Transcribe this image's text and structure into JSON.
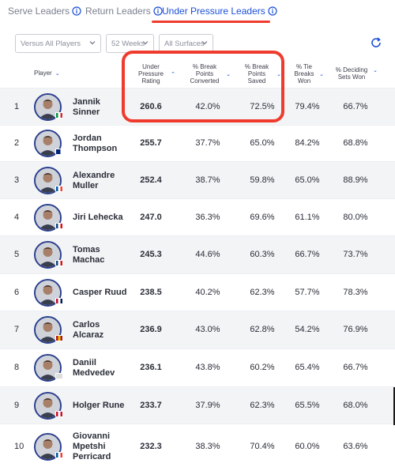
{
  "tabs": [
    {
      "label": "Serve Leaders",
      "active": false
    },
    {
      "label": "Return Leaders",
      "active": false
    },
    {
      "label": "Under Pressure Leaders",
      "active": true
    }
  ],
  "filters": {
    "opponents": "Versus All Players",
    "period": "52 Weeks",
    "surface": "All Surfaces"
  },
  "columns": {
    "player": "Player",
    "rating": [
      "Under",
      "Pressure",
      "Rating"
    ],
    "bp_converted": [
      "% Break",
      "Points",
      "Converted"
    ],
    "bp_saved": [
      "% Break",
      "Points",
      "Saved"
    ],
    "tiebreaks": [
      "% Tie",
      "Breaks",
      "Won"
    ],
    "deciding": [
      "% Deciding",
      "Sets Won"
    ]
  },
  "rows": [
    {
      "rank": "1",
      "name": [
        "Jannik",
        "Sinner"
      ],
      "rating": "260.6",
      "bpc": "42.0%",
      "bps": "72.5%",
      "tb": "79.4%",
      "ds": "66.7%",
      "flag": [
        "#009246",
        "#ffffff",
        "#ce2b37"
      ]
    },
    {
      "rank": "2",
      "name": [
        "Jordan",
        "Thompson"
      ],
      "rating": "255.7",
      "bpc": "37.7%",
      "bps": "65.0%",
      "tb": "84.2%",
      "ds": "68.8%",
      "flag": [
        "#00247d",
        "#00247d",
        "#ffffff"
      ]
    },
    {
      "rank": "3",
      "name": [
        "Alexandre",
        "Muller"
      ],
      "rating": "252.4",
      "bpc": "38.7%",
      "bps": "59.8%",
      "tb": "65.0%",
      "ds": "88.9%",
      "flag": [
        "#0055a4",
        "#ffffff",
        "#ef4135"
      ]
    },
    {
      "rank": "4",
      "name": [
        "Jiri Lehecka"
      ],
      "rating": "247.0",
      "bpc": "36.3%",
      "bps": "69.6%",
      "tb": "61.1%",
      "ds": "80.0%",
      "flag": [
        "#11457e",
        "#ffffff",
        "#d7141a"
      ]
    },
    {
      "rank": "5",
      "name": [
        "Tomas",
        "Machac"
      ],
      "rating": "245.3",
      "bpc": "44.6%",
      "bps": "60.3%",
      "tb": "66.7%",
      "ds": "73.7%",
      "flag": [
        "#11457e",
        "#ffffff",
        "#d7141a"
      ]
    },
    {
      "rank": "6",
      "name": [
        "Casper Ruud"
      ],
      "rating": "238.5",
      "bpc": "40.2%",
      "bps": "62.3%",
      "tb": "57.7%",
      "ds": "78.3%",
      "flag": [
        "#ba0c2f",
        "#ffffff",
        "#00205b"
      ]
    },
    {
      "rank": "7",
      "name": [
        "Carlos",
        "Alcaraz"
      ],
      "rating": "236.9",
      "bpc": "43.0%",
      "bps": "62.8%",
      "tb": "54.2%",
      "ds": "76.9%",
      "flag": [
        "#aa151b",
        "#f1bf00",
        "#aa151b"
      ]
    },
    {
      "rank": "8",
      "name": [
        "Daniil",
        "Medvedev"
      ],
      "rating": "236.1",
      "bpc": "43.8%",
      "bps": "60.2%",
      "tb": "65.4%",
      "ds": "66.7%",
      "flag": [
        "#dddddd",
        "#dddddd",
        "#dddddd"
      ]
    },
    {
      "rank": "9",
      "name": [
        "Holger Rune"
      ],
      "rating": "233.7",
      "bpc": "37.9%",
      "bps": "62.3%",
      "tb": "65.5%",
      "ds": "68.0%",
      "flag": [
        "#c8102e",
        "#ffffff",
        "#c8102e"
      ]
    },
    {
      "rank": "10",
      "name": [
        "Giovanni",
        "Mpetshi",
        "Perricard"
      ],
      "rating": "232.3",
      "bpc": "38.3%",
      "bps": "70.4%",
      "tb": "60.0%",
      "ds": "63.6%",
      "flag": [
        "#0055a4",
        "#ffffff",
        "#ef4135"
      ]
    }
  ],
  "colors": {
    "accent": "#1b4fd8",
    "highlight": "#ef3b2d"
  },
  "icons": [
    "info-icon",
    "chevron-down-icon",
    "refresh-icon",
    "sort-icon"
  ]
}
